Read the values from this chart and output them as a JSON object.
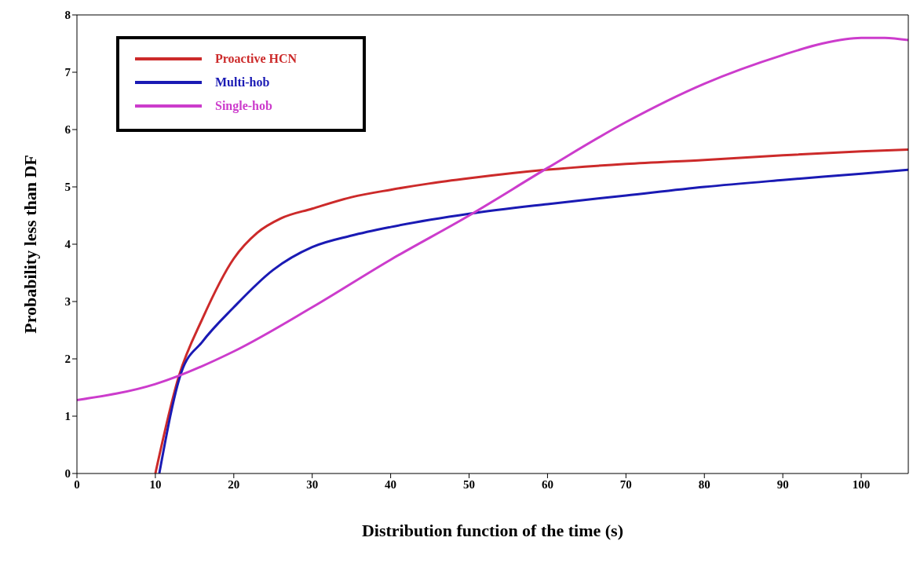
{
  "chart_data": {
    "type": "line",
    "xlabel": "Distribution function of the time (s)",
    "ylabel": "Probability less than DF",
    "xlim": [
      0,
      106
    ],
    "xticks": [
      0,
      10,
      20,
      30,
      40,
      50,
      60,
      70,
      80,
      90,
      100
    ],
    "ylim": [
      0,
      8
    ],
    "yticks": [
      0,
      1,
      2,
      3,
      4,
      5,
      6,
      7,
      8
    ],
    "grid": false,
    "legend": "top left",
    "marker": "none",
    "line_style": "solid",
    "series": [
      {
        "name": "Proactive HCN",
        "color": "#cc2a2a",
        "x": [
          10,
          13,
          16,
          20,
          23,
          26,
          30,
          35,
          40,
          45,
          50,
          60,
          70,
          80,
          90,
          100,
          106
        ],
        "values": [
          0,
          1.7,
          2.7,
          3.75,
          4.2,
          4.45,
          4.62,
          4.82,
          4.95,
          5.06,
          5.15,
          5.3,
          5.4,
          5.47,
          5.55,
          5.62,
          5.65
        ]
      },
      {
        "name": "Multi-hob",
        "color": "#1a1ab4",
        "x": [
          10.5,
          13.3,
          16,
          20,
          25,
          30,
          35,
          40,
          50,
          60,
          70,
          80,
          90,
          100,
          106
        ],
        "values": [
          0,
          1.76,
          2.3,
          2.9,
          3.55,
          3.95,
          4.15,
          4.3,
          4.53,
          4.7,
          4.85,
          5,
          5.12,
          5.23,
          5.3
        ]
      },
      {
        "name": "Single-hob",
        "color": "#cc3ccc",
        "x": [
          0,
          10,
          20,
          30,
          40,
          50,
          60,
          70,
          80,
          90,
          95,
          100,
          103,
          106
        ],
        "values": [
          1.28,
          1.56,
          2.13,
          2.9,
          3.73,
          4.5,
          5.33,
          6.13,
          6.8,
          7.3,
          7.5,
          7.6,
          7.6,
          7.56
        ]
      }
    ]
  }
}
